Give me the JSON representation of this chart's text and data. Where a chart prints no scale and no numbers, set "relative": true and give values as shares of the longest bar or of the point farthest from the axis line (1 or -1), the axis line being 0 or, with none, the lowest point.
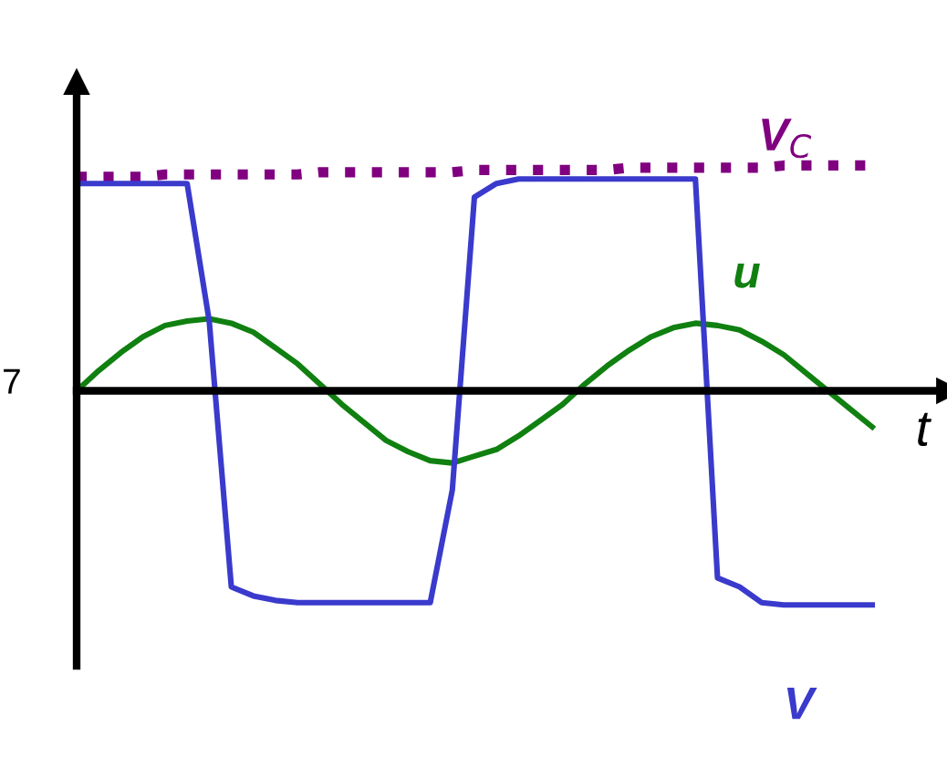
{
  "chart_data": {
    "type": "line",
    "relative": true,
    "xlabel": "t",
    "annotations": [
      "7"
    ],
    "categories": [
      null,
      null,
      null,
      null,
      null,
      null,
      null,
      null,
      null,
      null,
      null,
      null,
      null,
      null,
      null,
      null,
      null,
      null,
      null,
      null,
      null,
      null,
      null,
      null,
      null,
      null,
      null,
      null,
      null,
      null,
      null,
      null,
      null,
      null,
      null,
      null,
      null
    ],
    "series": [
      {
        "name": "V$_{C}$",
        "color": "#800080",
        "line_style": "dotted",
        "values": [
          0.95,
          0.95,
          0.95,
          0.95,
          0.96,
          0.96,
          0.96,
          0.96,
          0.96,
          0.96,
          0.96,
          0.97,
          0.97,
          0.97,
          0.97,
          0.97,
          0.97,
          0.97,
          0.98,
          0.98,
          0.98,
          0.98,
          0.98,
          0.98,
          0.98,
          0.99,
          0.99,
          0.99,
          0.99,
          0.99,
          0.99,
          0.99,
          1.0,
          1.0,
          1.0,
          1.0,
          1.0
        ]
      },
      {
        "name": "u",
        "color": "#108010",
        "line_style": "solid",
        "values": [
          0,
          0.09,
          0.17,
          0.24,
          0.29,
          0.31,
          0.32,
          0.3,
          0.26,
          0.19,
          0.12,
          0.03,
          -0.06,
          -0.14,
          -0.22,
          -0.27,
          -0.31,
          -0.32,
          -0.29,
          -0.26,
          -0.2,
          -0.13,
          -0.06,
          0.03,
          0.11,
          0.18,
          0.24,
          0.28,
          0.3,
          0.29,
          0.27,
          0.22,
          0.16,
          0.08,
          0,
          -0.08,
          -0.16
        ]
      },
      {
        "name": "V",
        "color": "#3a3acc",
        "line_style": "solid",
        "values": [
          0.92,
          0.92,
          0.92,
          0.92,
          0.92,
          0.92,
          0.31,
          -0.87,
          -0.91,
          -0.93,
          -0.94,
          -0.94,
          -0.94,
          -0.94,
          -0.94,
          -0.94,
          -0.94,
          -0.44,
          0.86,
          0.92,
          0.94,
          0.94,
          0.94,
          0.94,
          0.94,
          0.94,
          0.94,
          0.94,
          0.94,
          -0.83,
          -0.87,
          -0.94,
          -0.95,
          -0.95,
          -0.95,
          -0.95,
          -0.95
        ]
      }
    ]
  }
}
